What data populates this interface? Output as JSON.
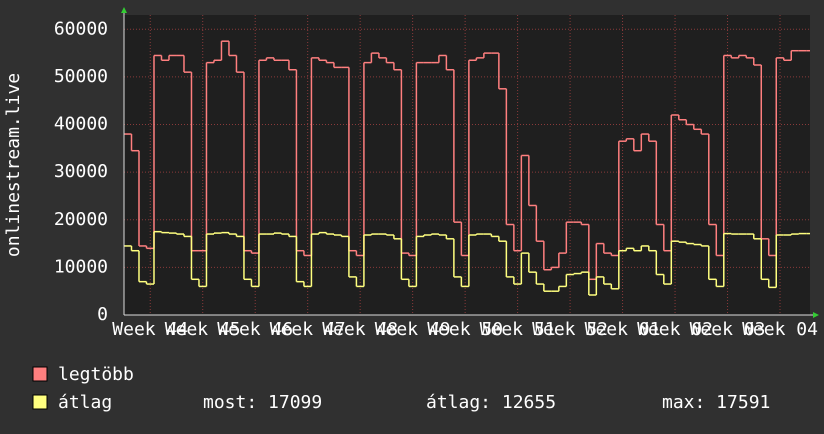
{
  "chart_data": {
    "type": "line",
    "step": true,
    "y_label": "onlinestream.live",
    "x": [
      0,
      1,
      2,
      3,
      4,
      5,
      6,
      7,
      8,
      9,
      10,
      11,
      12,
      13,
      14,
      15,
      16,
      17,
      18,
      19,
      20,
      21,
      22,
      23,
      24,
      25,
      26,
      27,
      28,
      29,
      30,
      31,
      32,
      33,
      34,
      35,
      36,
      37,
      38,
      39,
      40,
      41,
      42,
      43,
      44,
      45,
      46,
      47,
      48,
      49,
      50,
      51,
      52,
      53,
      54,
      55,
      56,
      57,
      58,
      59,
      60,
      61,
      62,
      63,
      64,
      65,
      66,
      67,
      68,
      69,
      70,
      71,
      72,
      73,
      74,
      75,
      76,
      77,
      78,
      79,
      80,
      81,
      82,
      83,
      84,
      85,
      86,
      87,
      88,
      89,
      90,
      91
    ],
    "xlim": [
      0,
      91.5
    ],
    "xticks": [
      {
        "value": 3.5,
        "label": "Week 44"
      },
      {
        "value": 10.5,
        "label": "Week 45"
      },
      {
        "value": 17.5,
        "label": "Week 46"
      },
      {
        "value": 24.5,
        "label": "Week 47"
      },
      {
        "value": 31.5,
        "label": "Week 48"
      },
      {
        "value": 38.5,
        "label": "Week 49"
      },
      {
        "value": 45.5,
        "label": "Week 50"
      },
      {
        "value": 52.5,
        "label": "Week 51"
      },
      {
        "value": 59.5,
        "label": "Week 52"
      },
      {
        "value": 66.5,
        "label": "Week 01"
      },
      {
        "value": 73.5,
        "label": "Week 02"
      },
      {
        "value": 80.5,
        "label": "Week 03"
      },
      {
        "value": 87.5,
        "label": "Week 04"
      }
    ],
    "ylim": [
      0,
      63000
    ],
    "yticks": [
      0,
      10000,
      20000,
      30000,
      40000,
      50000,
      60000
    ],
    "grid": true,
    "series": [
      {
        "name": "legtöbb",
        "color": "#ff7f7f",
        "values": [
          38000,
          34500,
          14500,
          14000,
          54500,
          53500,
          54500,
          54500,
          51000,
          13500,
          13500,
          53000,
          53500,
          57500,
          54500,
          51000,
          13500,
          13000,
          53500,
          54000,
          53500,
          53500,
          51500,
          13500,
          12500,
          54000,
          53500,
          53000,
          52000,
          52000,
          13500,
          12500,
          53000,
          55000,
          54000,
          53000,
          51500,
          13000,
          12500,
          53000,
          53000,
          53000,
          54500,
          51500,
          19500,
          12500,
          53500,
          54000,
          55000,
          55000,
          47500,
          19000,
          13500,
          33500,
          23000,
          15500,
          9500,
          10000,
          13000,
          19500,
          19500,
          19000,
          7500,
          15000,
          13000,
          12500,
          36500,
          37000,
          34500,
          38000,
          36500,
          19000,
          13500,
          42000,
          41000,
          40000,
          39000,
          38000,
          19000,
          12500,
          54500,
          54000,
          54500,
          54000,
          52500,
          16000,
          12500,
          54000,
          53500,
          55500,
          55500,
          55500
        ]
      },
      {
        "name": "átlag",
        "color": "#ffff7f",
        "values": [
          14500,
          13500,
          7000,
          6500,
          17500,
          17300,
          17200,
          17000,
          16500,
          7500,
          6000,
          17000,
          17200,
          17300,
          17000,
          16500,
          7500,
          6000,
          17000,
          17000,
          17200,
          17000,
          16500,
          7000,
          6000,
          17000,
          17300,
          17000,
          16800,
          16500,
          8000,
          6000,
          16800,
          17000,
          17000,
          16800,
          16000,
          7500,
          6000,
          16500,
          16800,
          17000,
          16800,
          16000,
          8000,
          6000,
          16800,
          17000,
          17000,
          16500,
          15500,
          8000,
          6500,
          13000,
          9000,
          6500,
          5000,
          5000,
          6000,
          8500,
          8700,
          9000,
          4200,
          8000,
          6500,
          5500,
          13500,
          14000,
          13500,
          14500,
          13500,
          8500,
          6500,
          15500,
          15300,
          15000,
          14800,
          14500,
          7500,
          6000,
          17099,
          17000,
          17000,
          17000,
          16000,
          7500,
          5800,
          16800,
          16800,
          17000,
          17099,
          17099
        ]
      }
    ],
    "legend_stats": [
      "most: 17099",
      "átlag: 12655",
      "max: 17591"
    ]
  }
}
